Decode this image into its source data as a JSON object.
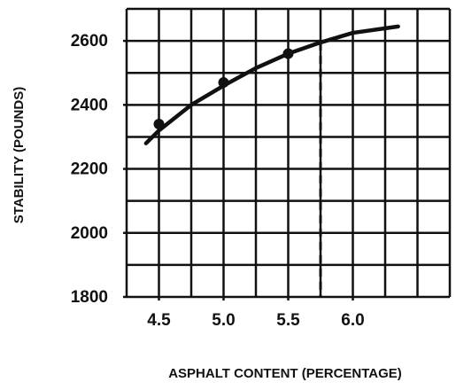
{
  "chart_data": {
    "type": "line",
    "x_label": "ASPHALT CONTENT (PERCENTAGE)",
    "y_label": "STABILITY (POUNDS)",
    "xlim": [
      4.25,
      6.75
    ],
    "ylim": [
      1800,
      2700
    ],
    "xticks": [
      4.5,
      {
        "value": 5,
        "label": "5.0"
      },
      5.5,
      {
        "value": 6,
        "label": "6.0"
      }
    ],
    "yticks": [
      1800,
      2000,
      2200,
      2400,
      2600
    ],
    "xgrid": [
      4.25,
      4.5,
      4.75,
      5,
      5.25,
      5.5,
      5.75,
      6,
      6.25,
      6.5,
      6.75
    ],
    "ygrid": [
      1800,
      1900,
      2000,
      2100,
      2200,
      2300,
      2400,
      2500,
      2600,
      2700
    ],
    "grid": true,
    "color": "#111111",
    "series": [
      {
        "style": "line",
        "x": [
          4.4,
          4.5,
          4.75,
          5,
          5.25,
          5.5,
          5.75,
          6,
          6.35
        ],
        "values": [
          2280,
          2320,
          2400,
          2460,
          2515,
          2560,
          2595,
          2625,
          2645
        ]
      },
      {
        "style": "markers",
        "x": [
          4.5,
          5,
          5.5
        ],
        "values": [
          2340,
          2470,
          2560
        ]
      }
    ],
    "reference_line": {
      "x": 5.75,
      "y": 2595
    }
  }
}
